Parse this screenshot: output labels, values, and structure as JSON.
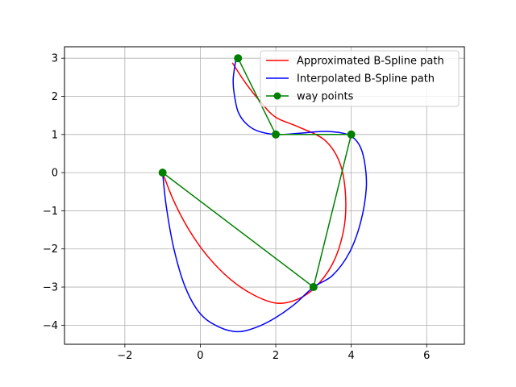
{
  "chart_data": {
    "type": "line",
    "title": "",
    "xlabel": "",
    "ylabel": "",
    "xlim": [
      -3.6,
      7.0
    ],
    "ylim": [
      -4.5,
      3.3
    ],
    "x_ticks": [
      -2,
      0,
      2,
      4,
      6
    ],
    "y_ticks": [
      -4,
      -3,
      -2,
      -1,
      0,
      1,
      2,
      3
    ],
    "x_tick_labels": [
      "−2",
      "0",
      "2",
      "4",
      "6"
    ],
    "y_tick_labels": [
      "−4",
      "−3",
      "−2",
      "−1",
      "0",
      "1",
      "2",
      "3"
    ],
    "grid": true,
    "legend_position": "top-right",
    "series": [
      {
        "name": "Approximated B-Spline path",
        "color": "#ff0000",
        "marker": "none",
        "x": [
          0.85,
          1.2,
          1.6,
          2.0,
          2.6,
          3.3,
          3.7,
          3.85,
          3.8,
          3.5,
          3.0,
          2.5,
          2.0,
          1.4,
          0.8,
          0.2,
          -0.3,
          -0.7,
          -1.0
        ],
        "y": [
          2.88,
          2.35,
          1.85,
          1.45,
          1.2,
          0.85,
          0.25,
          -0.6,
          -1.5,
          -2.4,
          -3.05,
          -3.35,
          -3.42,
          -3.2,
          -2.8,
          -2.2,
          -1.5,
          -0.75,
          0.0
        ]
      },
      {
        "name": "Interpolated B-Spline path",
        "color": "#0000ff",
        "marker": "none",
        "x": [
          0.95,
          0.9,
          0.87,
          0.9,
          1.0,
          1.2,
          1.5,
          2.0,
          2.6,
          3.3,
          3.9,
          4.2,
          4.35,
          4.4,
          4.25,
          3.95,
          3.5,
          3.0,
          2.5,
          2.0,
          1.5,
          1.0,
          0.5,
          0.0,
          -0.4,
          -0.7,
          -0.9,
          -1.0
        ],
        "y": [
          3.0,
          2.7,
          2.4,
          2.05,
          1.6,
          1.3,
          1.1,
          1.0,
          1.03,
          1.08,
          1.0,
          0.75,
          0.3,
          -0.4,
          -1.3,
          -2.1,
          -2.7,
          -3.0,
          -3.45,
          -3.8,
          -4.05,
          -4.17,
          -4.05,
          -3.7,
          -3.0,
          -2.0,
          -0.9,
          0.0
        ]
      },
      {
        "name": "way points",
        "color": "#008000",
        "marker": "circle",
        "x": [
          1,
          2,
          4,
          3,
          -1
        ],
        "y": [
          3,
          1,
          1,
          -3,
          0
        ]
      }
    ]
  }
}
